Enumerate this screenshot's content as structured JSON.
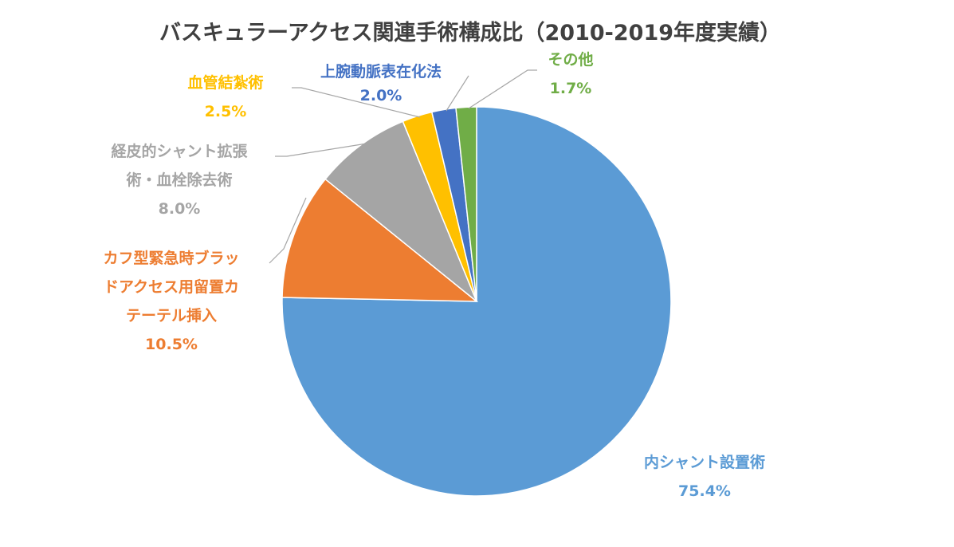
{
  "chart_data": {
    "type": "pie",
    "title": "バスキュラーアクセス関連手術構成比（2010-2019年度実績）",
    "start_angle_deg": 0,
    "direction": "clockwise",
    "slices": [
      {
        "label_lines": [
          "内シャント設置術"
        ],
        "value_text": "75.4%",
        "value": 75.4,
        "color": "#5b9bd5"
      },
      {
        "label_lines": [
          "カフ型緊急時ブラッ",
          "ドアクセス用留置カ",
          "テーテル挿入"
        ],
        "value_text": "10.5%",
        "value": 10.5,
        "color": "#ed7d31"
      },
      {
        "label_lines": [
          "経皮的シャント拡張",
          "術・血栓除去術"
        ],
        "value_text": "8.0%",
        "value": 8.0,
        "color": "#a5a5a5"
      },
      {
        "label_lines": [
          "血管結紮術"
        ],
        "value_text": "2.5%",
        "value": 2.5,
        "color": "#ffc000"
      },
      {
        "label_lines": [
          "上腕動脈表在化法"
        ],
        "value_text": "2.0%",
        "value": 2.0,
        "color": "#4472c4"
      },
      {
        "label_lines": [
          "その他"
        ],
        "value_text": "1.7%",
        "value": 1.7,
        "color": "#70ad47"
      }
    ],
    "data_label_colors": [
      "#5b9bd5",
      "#ed7d31",
      "#a5a5a5",
      "#ffc000",
      "#4472c4",
      "#70ad47"
    ],
    "leader_line_color": "#a6a6a6"
  }
}
